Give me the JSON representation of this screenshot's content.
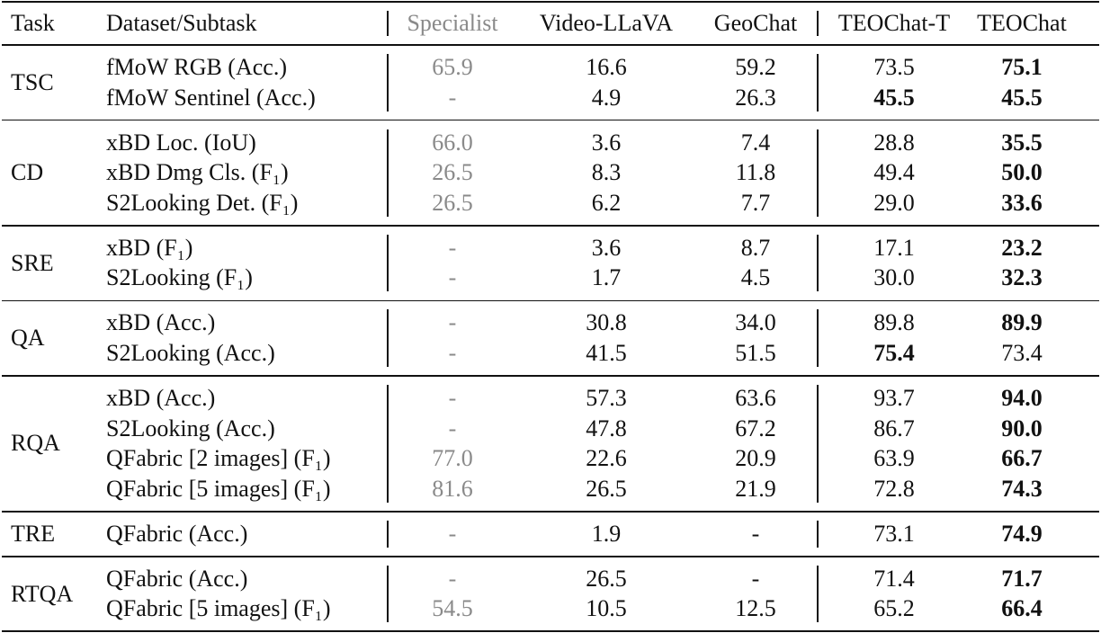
{
  "header": [
    "Task",
    "Dataset/Subtask",
    "Specialist",
    "Video-LLaVA",
    "GeoChat",
    "TEOChat-T",
    "TEOChat"
  ],
  "groups": [
    {
      "task": "TSC",
      "rows": [
        {
          "dataset": "fMoW RGB (Acc.)",
          "values": [
            "65.9",
            "16.6",
            "59.2",
            "73.5",
            "75.1"
          ],
          "bold": [
            4
          ]
        },
        {
          "dataset": "fMoW Sentinel (Acc.)",
          "values": [
            "-",
            "4.9",
            "26.3",
            "45.5",
            "45.5"
          ],
          "bold": [
            3,
            4
          ]
        }
      ]
    },
    {
      "task": "CD",
      "rows": [
        {
          "dataset": "xBD Loc. (IoU)",
          "values": [
            "66.0",
            "3.6",
            "7.4",
            "28.8",
            "35.5"
          ],
          "bold": [
            4
          ]
        },
        {
          "dataset": "xBD Dmg Cls. (F₁)",
          "values": [
            "26.5",
            "8.3",
            "11.8",
            "49.4",
            "50.0"
          ],
          "bold": [
            4
          ]
        },
        {
          "dataset": "S2Looking Det. (F₁)",
          "values": [
            "26.5",
            "6.2",
            "7.7",
            "29.0",
            "33.6"
          ],
          "bold": [
            4
          ]
        }
      ]
    },
    {
      "task": "SRE",
      "rows": [
        {
          "dataset": "xBD (F₁)",
          "values": [
            "-",
            "3.6",
            "8.7",
            "17.1",
            "23.2"
          ],
          "bold": [
            4
          ]
        },
        {
          "dataset": "S2Looking (F₁)",
          "values": [
            "-",
            "1.7",
            "4.5",
            "30.0",
            "32.3"
          ],
          "bold": [
            4
          ]
        }
      ]
    },
    {
      "task": "QA",
      "rows": [
        {
          "dataset": "xBD (Acc.)",
          "values": [
            "-",
            "30.8",
            "34.0",
            "89.8",
            "89.9"
          ],
          "bold": [
            4
          ]
        },
        {
          "dataset": "S2Looking (Acc.)",
          "values": [
            "-",
            "41.5",
            "51.5",
            "75.4",
            "73.4"
          ],
          "bold": [
            3
          ]
        }
      ]
    },
    {
      "task": "RQA",
      "rows": [
        {
          "dataset": "xBD (Acc.)",
          "values": [
            "-",
            "57.3",
            "63.6",
            "93.7",
            "94.0"
          ],
          "bold": [
            4
          ]
        },
        {
          "dataset": "S2Looking (Acc.)",
          "values": [
            "-",
            "47.8",
            "67.2",
            "86.7",
            "90.0"
          ],
          "bold": [
            4
          ]
        },
        {
          "dataset": "QFabric [2 images] (F₁)",
          "values": [
            "77.0",
            "22.6",
            "20.9",
            "63.9",
            "66.7"
          ],
          "bold": [
            4
          ]
        },
        {
          "dataset": "QFabric [5 images] (F₁)",
          "values": [
            "81.6",
            "26.5",
            "21.9",
            "72.8",
            "74.3"
          ],
          "bold": [
            4
          ]
        }
      ]
    },
    {
      "task": "TRE",
      "rows": [
        {
          "dataset": "QFabric (Acc.)",
          "values": [
            "-",
            "1.9",
            "-",
            "73.1",
            "74.9"
          ],
          "bold": [
            4
          ]
        }
      ]
    },
    {
      "task": "RTQA",
      "rows": [
        {
          "dataset": "QFabric (Acc.)",
          "values": [
            "-",
            "26.5",
            "-",
            "71.4",
            "71.7"
          ],
          "bold": [
            4
          ]
        },
        {
          "dataset": "QFabric [5 images] (F₁)",
          "values": [
            "54.5",
            "10.5",
            "12.5",
            "65.2",
            "66.4"
          ],
          "bold": [
            4
          ]
        }
      ]
    }
  ]
}
